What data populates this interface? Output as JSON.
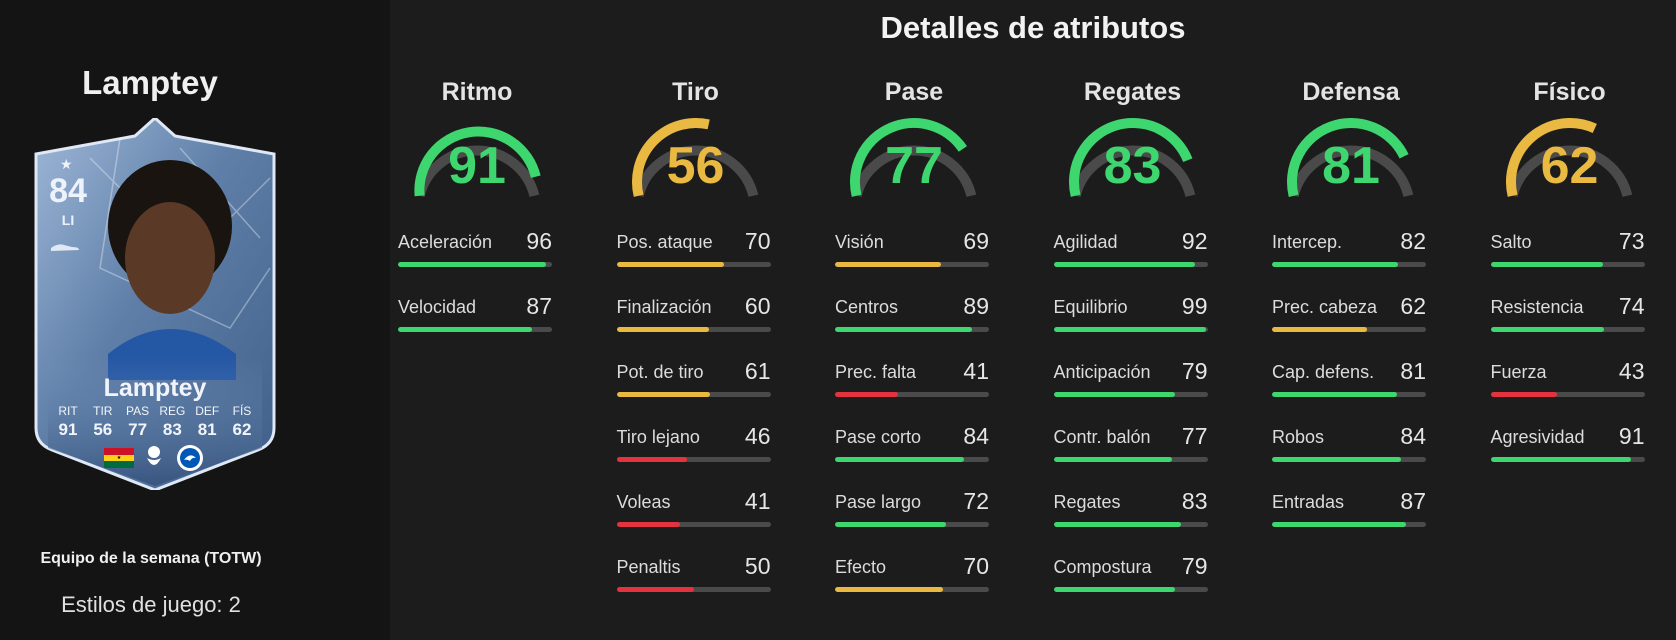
{
  "player": {
    "name": "Lamptey",
    "card": {
      "rating": "84",
      "position": "LI",
      "name": "Lamptey",
      "stats": [
        {
          "label": "RIT",
          "value": "91"
        },
        {
          "label": "TIR",
          "value": "56"
        },
        {
          "label": "PAS",
          "value": "77"
        },
        {
          "label": "REG",
          "value": "83"
        },
        {
          "label": "DEF",
          "value": "81"
        },
        {
          "label": "FÍS",
          "value": "62"
        }
      ]
    },
    "card_type": "Equipo de la semana (TOTW)",
    "playstyles": "Estilos de juego: 2"
  },
  "colors": {
    "green": "#3ed66e",
    "yellow": "#e9b942",
    "red": "#e5323f",
    "track": "#4a4a4a"
  },
  "details": {
    "title": "Detalles de atributos",
    "categories": [
      {
        "name": "Ritmo",
        "value": 91,
        "color": "green",
        "attributes": [
          {
            "name": "Aceleración",
            "value": 96,
            "color": "green"
          },
          {
            "name": "Velocidad",
            "value": 87,
            "color": "green"
          }
        ]
      },
      {
        "name": "Tiro",
        "value": 56,
        "color": "yellow",
        "attributes": [
          {
            "name": "Pos. ataque",
            "value": 70,
            "color": "yellow"
          },
          {
            "name": "Finalización",
            "value": 60,
            "color": "yellow"
          },
          {
            "name": "Pot. de tiro",
            "value": 61,
            "color": "yellow"
          },
          {
            "name": "Tiro lejano",
            "value": 46,
            "color": "red"
          },
          {
            "name": "Voleas",
            "value": 41,
            "color": "red"
          },
          {
            "name": "Penaltis",
            "value": 50,
            "color": "red"
          }
        ]
      },
      {
        "name": "Pase",
        "value": 77,
        "color": "green",
        "attributes": [
          {
            "name": "Visión",
            "value": 69,
            "color": "yellow"
          },
          {
            "name": "Centros",
            "value": 89,
            "color": "green"
          },
          {
            "name": "Prec. falta",
            "value": 41,
            "color": "red"
          },
          {
            "name": "Pase corto",
            "value": 84,
            "color": "green"
          },
          {
            "name": "Pase largo",
            "value": 72,
            "color": "green"
          },
          {
            "name": "Efecto",
            "value": 70,
            "color": "yellow"
          }
        ]
      },
      {
        "name": "Regates",
        "value": 83,
        "color": "green",
        "attributes": [
          {
            "name": "Agilidad",
            "value": 92,
            "color": "green"
          },
          {
            "name": "Equilibrio",
            "value": 99,
            "color": "green"
          },
          {
            "name": "Anticipación",
            "value": 79,
            "color": "green"
          },
          {
            "name": "Contr. balón",
            "value": 77,
            "color": "green"
          },
          {
            "name": "Regates",
            "value": 83,
            "color": "green"
          },
          {
            "name": "Compostura",
            "value": 79,
            "color": "green"
          }
        ]
      },
      {
        "name": "Defensa",
        "value": 81,
        "color": "green",
        "attributes": [
          {
            "name": "Intercep.",
            "value": 82,
            "color": "green"
          },
          {
            "name": "Prec. cabeza",
            "value": 62,
            "color": "yellow"
          },
          {
            "name": "Cap. defens.",
            "value": 81,
            "color": "green"
          },
          {
            "name": "Robos",
            "value": 84,
            "color": "green"
          },
          {
            "name": "Entradas",
            "value": 87,
            "color": "green"
          }
        ]
      },
      {
        "name": "Físico",
        "value": 62,
        "color": "yellow",
        "attributes": [
          {
            "name": "Salto",
            "value": 73,
            "color": "green"
          },
          {
            "name": "Resistencia",
            "value": 74,
            "color": "green"
          },
          {
            "name": "Fuerza",
            "value": 43,
            "color": "red"
          },
          {
            "name": "Agresividad",
            "value": 91,
            "color": "green"
          }
        ]
      }
    ]
  }
}
